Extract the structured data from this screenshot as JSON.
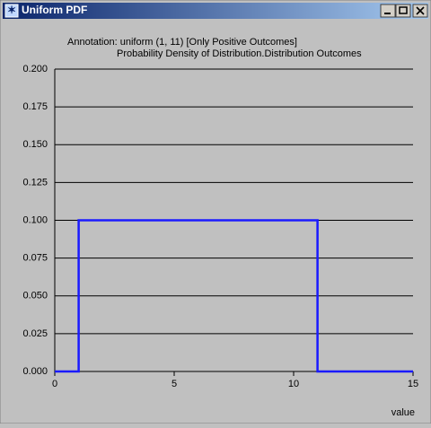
{
  "window": {
    "title": "Uniform PDF"
  },
  "chart_data": {
    "type": "line",
    "title": "Annotation: uniform (1, 11) [Only Positive Outcomes]",
    "subtitle": "Probability Density of Distribution.Distribution Outcomes",
    "x_label": "value",
    "series": [
      {
        "name": "Probability Density",
        "color": "#1a1aff",
        "x": [
          0,
          1,
          1,
          11,
          11,
          15
        ],
        "values": [
          0,
          0,
          0.1,
          0.1,
          0,
          0
        ]
      }
    ],
    "xlim": [
      0,
      15
    ],
    "xticks": [
      0,
      5,
      10,
      15
    ],
    "ylim": [
      0,
      0.2
    ],
    "yticks": [
      {
        "value": 0,
        "label": "0.000"
      },
      {
        "value": 0.025,
        "label": "0.025"
      },
      {
        "value": 0.05,
        "label": "0.050"
      },
      {
        "value": 0.075,
        "label": "0.075"
      },
      {
        "value": 0.1,
        "label": "0.100"
      },
      {
        "value": 0.125,
        "label": "0.125"
      },
      {
        "value": 0.15,
        "label": "0.150"
      },
      {
        "value": 0.175,
        "label": "0.175"
      },
      {
        "value": 0.2,
        "label": "0.200"
      }
    ],
    "grid": true
  }
}
